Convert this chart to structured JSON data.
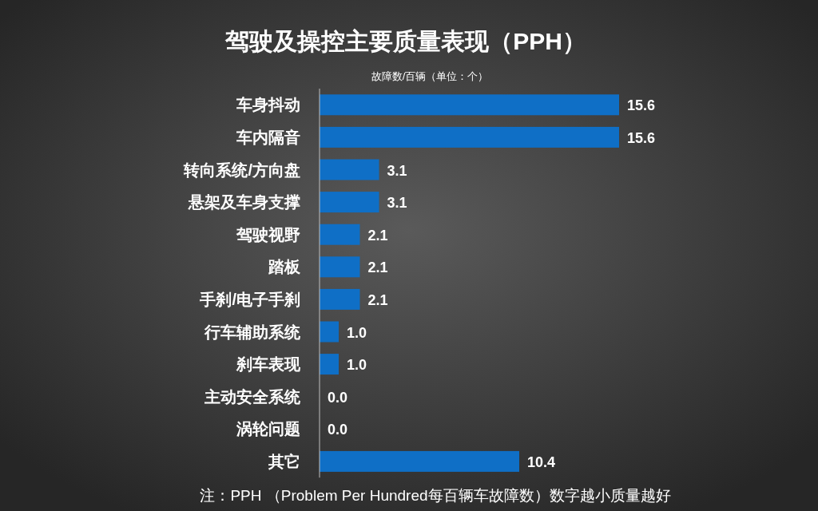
{
  "chart_data": {
    "type": "bar",
    "orientation": "horizontal",
    "title": "驾驶及操控主要质量表现（PPH）",
    "subtitle": "故障数/百辆（单位：个）",
    "categories": [
      "车身抖动",
      "车内隔音",
      "转向系统/方向盘",
      "悬架及车身支撑",
      "驾驶视野",
      "踏板",
      "手刹/电子手刹",
      "行车辅助系统",
      "刹车表现",
      "主动安全系统",
      "涡轮问题",
      "其它"
    ],
    "values": [
      15.6,
      15.6,
      3.1,
      3.1,
      2.1,
      2.1,
      2.1,
      1.0,
      1.0,
      0.0,
      0.0,
      10.4
    ],
    "color": "#0f6fc6",
    "value_labels": [
      "15.6",
      "15.6",
      "3.1",
      "3.1",
      "2.1",
      "2.1",
      "2.1",
      "1.0",
      "1.0",
      "0.0",
      "0.0",
      "10.4"
    ],
    "annotations": [
      "注：PPH （Problem Per Hundred每百辆车故障数）数字越小质量越好"
    ]
  }
}
